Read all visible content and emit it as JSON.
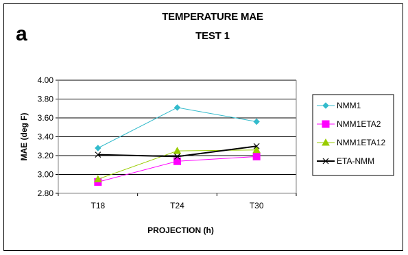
{
  "chart_data": {
    "type": "line",
    "panel_label": "a",
    "title": "TEMPERATURE MAE",
    "subtitle": "TEST 1",
    "xlabel": "PROJECTION (h)",
    "ylabel": "MAE (deg F)",
    "categories": [
      "T18",
      "T24",
      "T30"
    ],
    "ylim": [
      2.8,
      4.0
    ],
    "yticks": [
      "2.80",
      "3.00",
      "3.20",
      "3.40",
      "3.60",
      "3.80",
      "4.00"
    ],
    "grid": "horizontal",
    "legend_position": "right",
    "series": [
      {
        "name": "NMM1",
        "values": [
          3.28,
          3.71,
          3.56
        ],
        "color": "#33bbcc",
        "marker": "diamond"
      },
      {
        "name": "NMM1ETA2",
        "values": [
          2.92,
          3.14,
          3.19
        ],
        "color": "#ff00ff",
        "marker": "square"
      },
      {
        "name": "NMM1ETA12",
        "values": [
          2.95,
          3.25,
          3.26
        ],
        "color": "#99cc00",
        "marker": "triangle"
      },
      {
        "name": "ETA-NMM",
        "values": [
          3.21,
          3.19,
          3.3
        ],
        "color": "#000000",
        "marker": "x"
      }
    ]
  }
}
